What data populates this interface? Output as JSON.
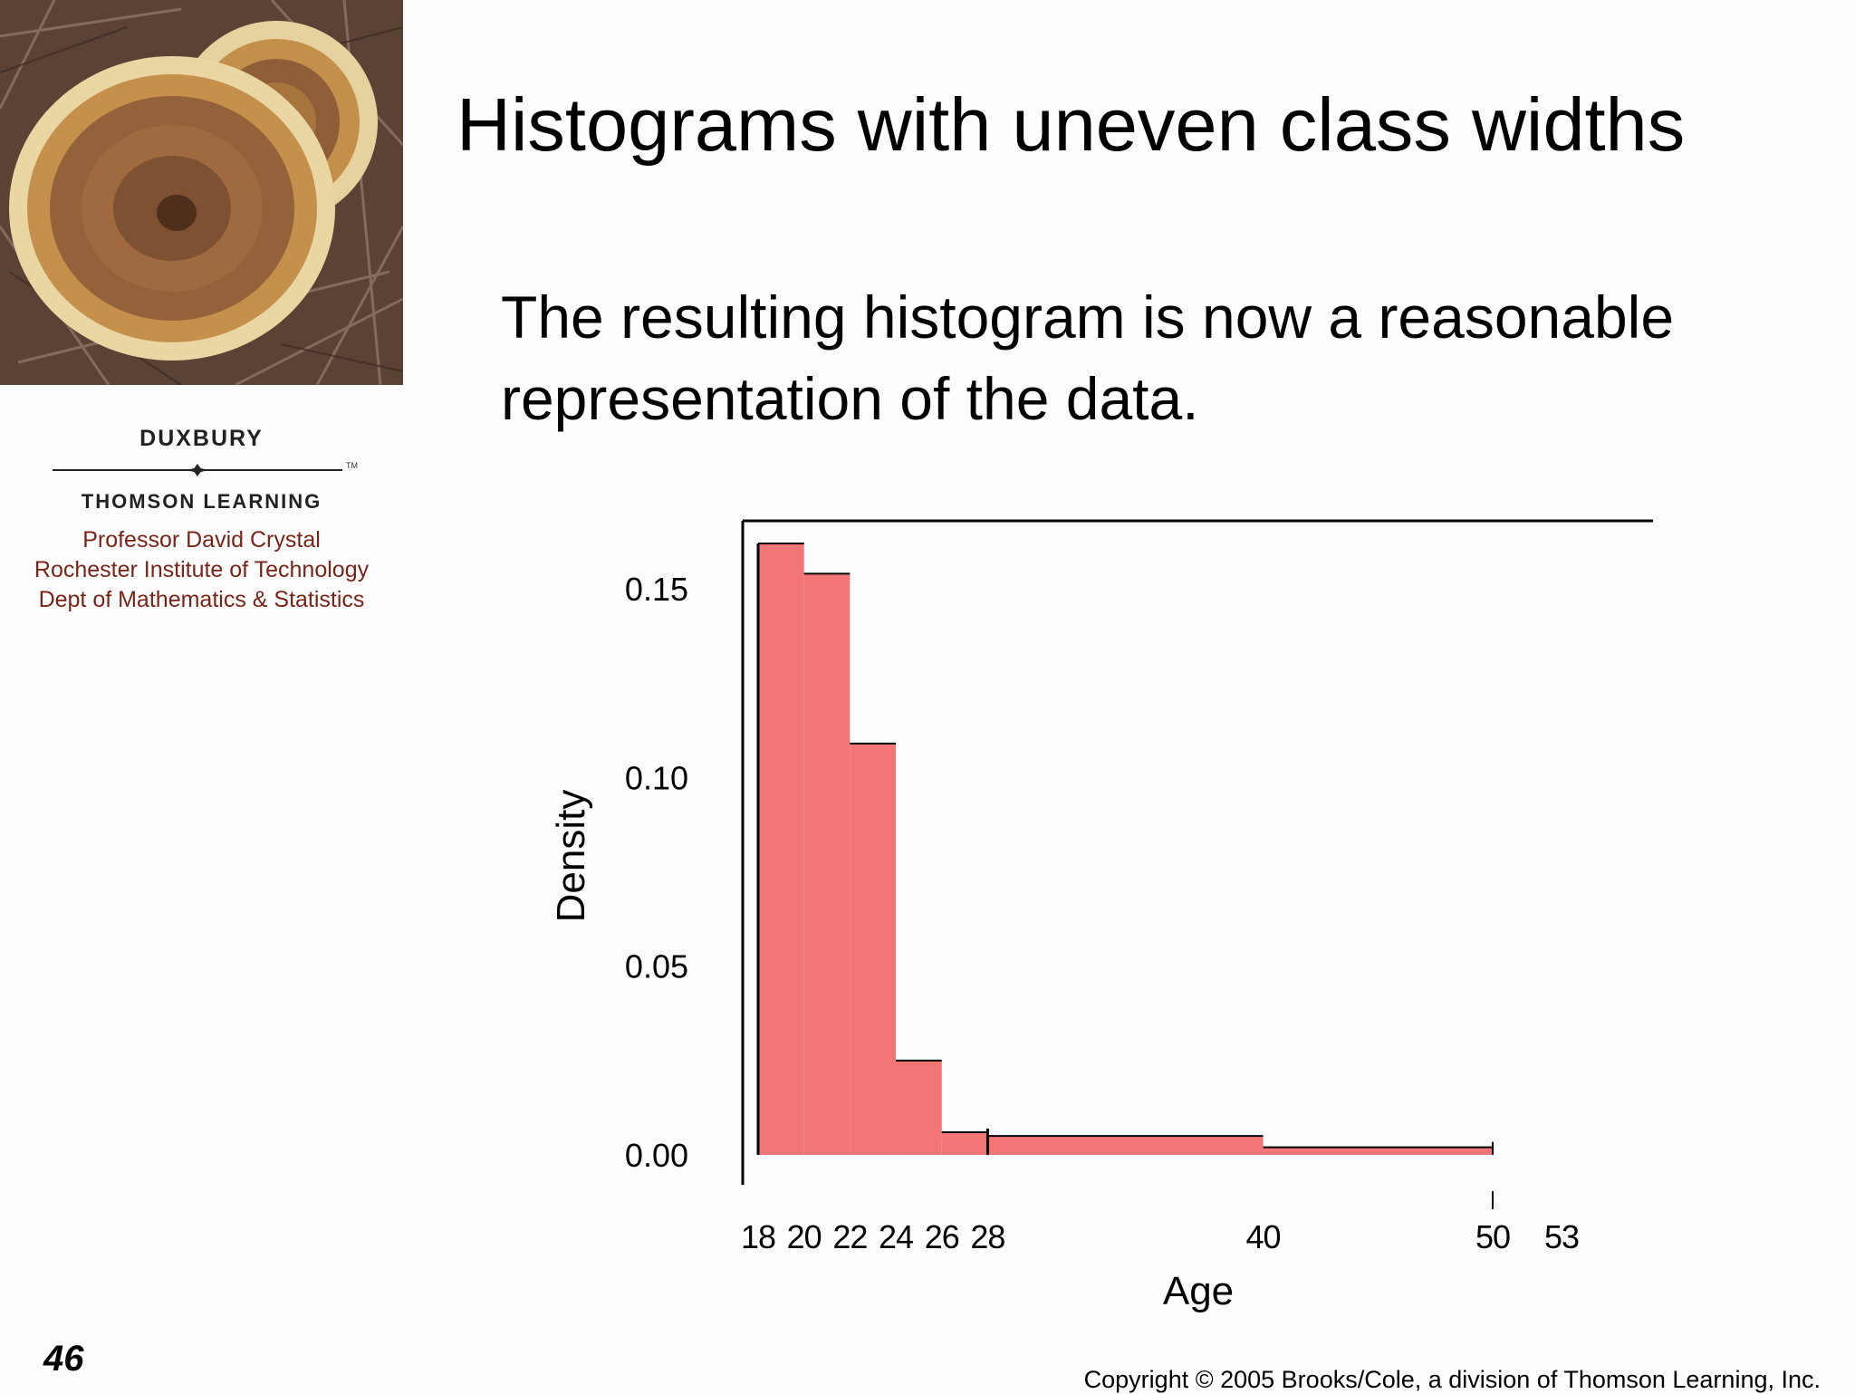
{
  "slide": {
    "title": "Histograms with uneven class widths",
    "body": "The resulting histogram is now a reasonable representation of the data.",
    "number": "46",
    "copyright": "Copyright © 2005 Brooks/Cole, a division of Thomson Learning, Inc."
  },
  "branding": {
    "publisher_top": "DUXBURY",
    "publisher_bottom": "THOMSON LEARNING",
    "trademark": "TM",
    "credit_lines": [
      "Professor David Crystal",
      "Rochester Institute of Technology",
      "Dept of Mathematics & Statistics"
    ],
    "credit_color": "#7a2418",
    "logo_photo": "mushroom-photo"
  },
  "chart_data": {
    "type": "bar",
    "xlabel": "Age",
    "ylabel": "Density",
    "bins": [
      {
        "from": 18,
        "to": 20,
        "density": 0.162
      },
      {
        "from": 20,
        "to": 22,
        "density": 0.154
      },
      {
        "from": 22,
        "to": 24,
        "density": 0.109
      },
      {
        "from": 24,
        "to": 26,
        "density": 0.025
      },
      {
        "from": 26,
        "to": 28,
        "density": 0.006
      },
      {
        "from": 28,
        "to": 40,
        "density": 0.005
      },
      {
        "from": 40,
        "to": 50,
        "density": 0.002
      }
    ],
    "x_ticks": [
      18,
      20,
      22,
      24,
      26,
      28,
      40,
      50,
      53
    ],
    "x_tick_labels": [
      "18",
      "20",
      "22",
      "24",
      "26",
      "28",
      "40",
      "50",
      "53"
    ],
    "y_ticks": [
      0.0,
      0.05,
      0.1,
      0.15
    ],
    "y_tick_labels": [
      "0.00",
      "0.05",
      "0.10",
      "0.15"
    ],
    "xlim": [
      18,
      53
    ],
    "ylim": [
      0,
      0.168
    ],
    "bar_color": "#f37676",
    "grid": false
  }
}
